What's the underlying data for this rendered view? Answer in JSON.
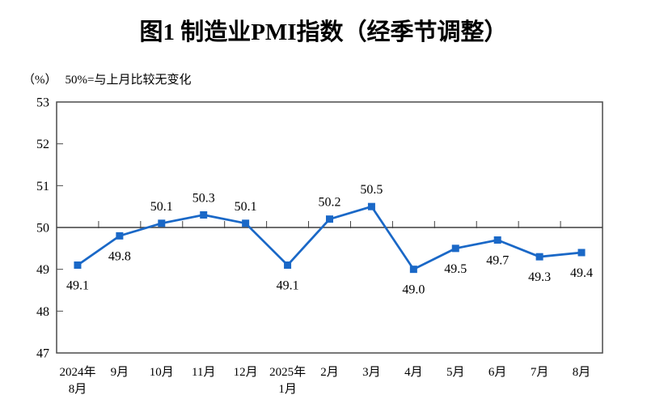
{
  "title": "图1 制造业PMI指数（经季节调整）",
  "subtitle": {
    "unit": "（%）",
    "note": "50%=与上月比较无变化"
  },
  "chart_data": {
    "type": "line",
    "title": "图1 制造业PMI指数（经季节调整）",
    "unit_note": "（%） 50%=与上月比较无变化",
    "categories": [
      [
        "2024年",
        "8月"
      ],
      [
        "9月"
      ],
      [
        "10月"
      ],
      [
        "11月"
      ],
      [
        "12月"
      ],
      [
        "2025年",
        "1月"
      ],
      [
        "2月"
      ],
      [
        "3月"
      ],
      [
        "4月"
      ],
      [
        "5月"
      ],
      [
        "6月"
      ],
      [
        "7月"
      ],
      [
        "8月"
      ]
    ],
    "values": [
      49.1,
      49.8,
      50.1,
      50.3,
      50.1,
      49.1,
      50.2,
      50.5,
      49.0,
      49.5,
      49.7,
      49.3,
      49.4
    ],
    "data_labels": [
      "49.1",
      "49.8",
      "50.1",
      "50.3",
      "50.1",
      "49.1",
      "50.2",
      "50.5",
      "49.0",
      "49.5",
      "49.7",
      "49.3",
      "49.4"
    ],
    "label_positions": [
      "below",
      "below",
      "above",
      "above",
      "above",
      "below",
      "above",
      "above",
      "below",
      "below",
      "below",
      "below",
      "below"
    ],
    "ylim": [
      47,
      53
    ],
    "yticks": [
      47,
      48,
      49,
      50,
      51,
      52,
      53
    ],
    "reference_value": 50,
    "marker": "square",
    "grid": false,
    "legend": "none",
    "colors": {
      "series": "#1a68c7",
      "frame": "#4a4a4a",
      "reference": "#3f3f3f",
      "text": "#000000"
    }
  }
}
